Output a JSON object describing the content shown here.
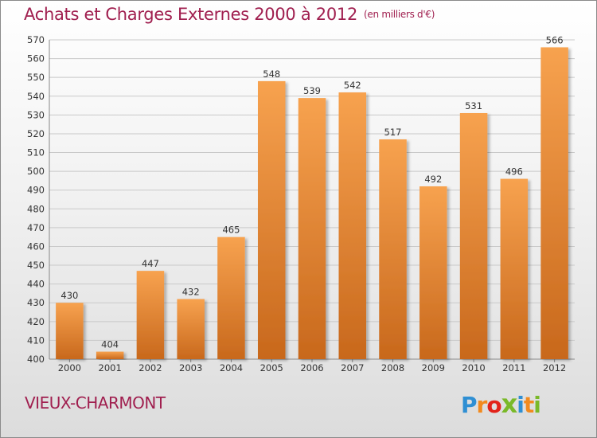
{
  "header": {
    "title": "Achats et Charges Externes 2000 à 2012",
    "unit": "(en milliers d'€)"
  },
  "footer": {
    "commune": "VIEUX-CHARMONT",
    "logo_letters": [
      "P",
      "r",
      "o",
      "x",
      "i",
      "t",
      "i"
    ]
  },
  "colors": {
    "title": "#a01f4f",
    "bar_top": "#f7a24f",
    "bar_bottom": "#c8681c",
    "logo": [
      "#2f8fd3",
      "#f28a1e",
      "#e2231a",
      "#7ab929",
      "#2f8fd3",
      "#f28a1e",
      "#7ab929"
    ]
  },
  "chart_data": {
    "type": "bar",
    "title": "Achats et Charges Externes 2000 à 2012",
    "subtitle": "(en milliers d'€)",
    "categories": [
      "2000",
      "2001",
      "2002",
      "2003",
      "2004",
      "2005",
      "2006",
      "2007",
      "2008",
      "2009",
      "2010",
      "2011",
      "2012"
    ],
    "values": [
      430,
      404,
      447,
      432,
      465,
      548,
      539,
      542,
      517,
      492,
      531,
      496,
      566
    ],
    "ylim": [
      400,
      570
    ],
    "yticks": [
      400,
      410,
      420,
      430,
      440,
      450,
      460,
      470,
      480,
      490,
      500,
      510,
      520,
      530,
      540,
      550,
      560,
      570
    ],
    "grid": true,
    "xlabel": "",
    "ylabel": ""
  }
}
